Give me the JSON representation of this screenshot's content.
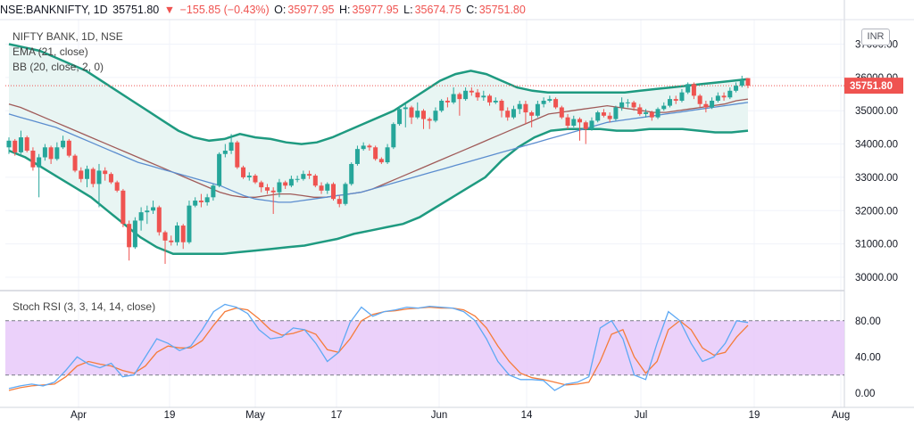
{
  "header": {
    "symbol": "NSE:BANKNIFTY, 1D",
    "last": "35751.80",
    "change": "−155.85 (−0.43%)",
    "o_label": "O:",
    "o_value": "35977.95",
    "h_label": "H:",
    "h_value": "35977.95",
    "l_label": "L:",
    "l_value": "35674.75",
    "c_label": "C:",
    "c_value": "35751.80"
  },
  "legend": {
    "title": "NIFTY BANK, 1D, NSE",
    "ema": "EMA (21, close)",
    "bb": "BB (20, close, 2, 0)",
    "stoch": "Stoch RSI (3, 3, 14, 14, close)"
  },
  "currency_badge": "INR",
  "price_badge": "35751.80",
  "colors": {
    "up": "#26a69a",
    "down": "#ef5350",
    "bb_band": "#1e9a80",
    "bb_fill": "#e8f5f3",
    "ema": "#5b8dcf",
    "bb_basis": "#a05b59",
    "k_line": "#5ea9f4",
    "d_line": "#f57c3a",
    "rsi_band": "#e8c9f9"
  },
  "chart_data": [
    {
      "type": "candlestick",
      "title": "NIFTY BANK, 1D, NSE",
      "y_axis_ticks": [
        "37000.00",
        "36000.00",
        "35000.00",
        "34000.00",
        "33000.00",
        "32000.00",
        "31000.00",
        "30000.00"
      ],
      "x_axis_ticks": [
        "Apr",
        "19",
        "May",
        "17",
        "Jun",
        "14",
        "Jul",
        "19",
        "Aug"
      ],
      "ylim": [
        29800,
        37500
      ],
      "last_price": 35751.8,
      "candles": [
        [
          33900,
          34100,
          33700,
          34200
        ],
        [
          34100,
          33750,
          33650,
          34150
        ],
        [
          33750,
          34200,
          33700,
          34400
        ],
        [
          34200,
          33800,
          33750,
          34250
        ],
        [
          33800,
          33300,
          33200,
          33900
        ],
        [
          33300,
          33600,
          32400,
          33700
        ],
        [
          33600,
          33900,
          33500,
          34000
        ],
        [
          33900,
          33550,
          33400,
          33950
        ],
        [
          33550,
          33900,
          33500,
          34050
        ],
        [
          33900,
          34100,
          33850,
          34250
        ],
        [
          34100,
          33650,
          33600,
          34150
        ],
        [
          33650,
          33200,
          33150,
          33700
        ],
        [
          33200,
          32950,
          32850,
          33300
        ],
        [
          32950,
          33250,
          32700,
          33350
        ],
        [
          33250,
          32800,
          32700,
          33300
        ],
        [
          32800,
          33200,
          32100,
          33400
        ],
        [
          33200,
          33100,
          32900,
          33300
        ],
        [
          33100,
          32850,
          32800,
          33150
        ],
        [
          32850,
          32600,
          32550,
          32900
        ],
        [
          32600,
          31600,
          31500,
          32650
        ],
        [
          31600,
          30900,
          30500,
          31700
        ],
        [
          30900,
          31700,
          30850,
          31800
        ],
        [
          31700,
          31950,
          31400,
          32100
        ],
        [
          31950,
          32000,
          31600,
          32150
        ],
        [
          32000,
          32100,
          31900,
          32300
        ],
        [
          32100,
          31350,
          31250,
          32150
        ],
        [
          31350,
          31100,
          30400,
          31400
        ],
        [
          31100,
          31050,
          30950,
          31250
        ],
        [
          31050,
          31550,
          30950,
          31650
        ],
        [
          31550,
          31050,
          30850,
          31600
        ],
        [
          31050,
          32150,
          31000,
          32300
        ],
        [
          32150,
          32300,
          32100,
          32400
        ],
        [
          32300,
          32250,
          32100,
          32500
        ],
        [
          32250,
          32400,
          32150,
          32500
        ],
        [
          32400,
          32750,
          32300,
          32800
        ],
        [
          32750,
          33700,
          32700,
          33750
        ],
        [
          33700,
          33800,
          33600,
          34000
        ],
        [
          33800,
          34050,
          33700,
          34300
        ],
        [
          34050,
          33300,
          33250,
          34100
        ],
        [
          33300,
          33000,
          32950,
          33350
        ],
        [
          33000,
          33050,
          32900,
          33150
        ],
        [
          33050,
          32850,
          32800,
          33100
        ],
        [
          32850,
          32700,
          32550,
          32900
        ],
        [
          32700,
          32600,
          32500,
          32800
        ],
        [
          32600,
          32550,
          31900,
          32700
        ],
        [
          32550,
          32850,
          32400,
          32950
        ],
        [
          32850,
          32750,
          32650,
          32900
        ],
        [
          32750,
          32950,
          32700,
          33050
        ],
        [
          32950,
          32950,
          32850,
          33050
        ],
        [
          32950,
          33100,
          32900,
          33200
        ],
        [
          33100,
          33050,
          32950,
          33200
        ],
        [
          33050,
          32750,
          32700,
          33100
        ],
        [
          32750,
          32600,
          32500,
          32850
        ],
        [
          32600,
          32800,
          32500,
          32850
        ],
        [
          32800,
          32350,
          32300,
          32850
        ],
        [
          32350,
          32200,
          32100,
          32450
        ],
        [
          32200,
          32800,
          32150,
          32850
        ],
        [
          32800,
          33400,
          32750,
          33450
        ],
        [
          33400,
          33850,
          33350,
          33950
        ],
        [
          33850,
          33950,
          33800,
          34050
        ],
        [
          33950,
          33900,
          33800,
          34000
        ],
        [
          33900,
          33550,
          33500,
          33950
        ],
        [
          33550,
          33450,
          33400,
          33600
        ],
        [
          33450,
          33900,
          33400,
          34000
        ],
        [
          33900,
          34600,
          33850,
          34650
        ],
        [
          34600,
          35050,
          34550,
          35150
        ],
        [
          35050,
          35100,
          34500,
          35200
        ],
        [
          35100,
          34800,
          34600,
          35150
        ],
        [
          34800,
          35000,
          34750,
          35250
        ],
        [
          35000,
          34750,
          34450,
          35050
        ],
        [
          34750,
          34700,
          34450,
          34800
        ],
        [
          34700,
          35000,
          34650,
          35100
        ],
        [
          35000,
          35300,
          34950,
          35350
        ],
        [
          35300,
          35250,
          35100,
          35400
        ],
        [
          35250,
          35500,
          35200,
          35700
        ],
        [
          35500,
          35350,
          34850,
          35550
        ],
        [
          35350,
          35600,
          35300,
          35700
        ],
        [
          35600,
          35550,
          35450,
          35700
        ],
        [
          35550,
          35400,
          35300,
          35650
        ],
        [
          35400,
          35450,
          35300,
          35600
        ],
        [
          35450,
          35250,
          35150,
          35500
        ],
        [
          35250,
          35300,
          35200,
          35400
        ],
        [
          35300,
          35000,
          34800,
          35350
        ],
        [
          35000,
          34800,
          34700,
          35100
        ],
        [
          34800,
          35050,
          34750,
          35150
        ],
        [
          35050,
          35200,
          34900,
          35300
        ],
        [
          35200,
          34950,
          34600,
          35300
        ],
        [
          34950,
          34850,
          34500,
          35000
        ],
        [
          34850,
          35200,
          34800,
          35300
        ],
        [
          35200,
          35300,
          35100,
          35400
        ],
        [
          35300,
          35350,
          35250,
          35450
        ],
        [
          35350,
          35100,
          35050,
          35400
        ],
        [
          35100,
          34800,
          34750,
          35150
        ],
        [
          34800,
          34550,
          34450,
          34900
        ],
        [
          34550,
          34750,
          34500,
          34850
        ],
        [
          34750,
          34650,
          34100,
          34800
        ],
        [
          34650,
          34450,
          34000,
          34700
        ],
        [
          34450,
          34700,
          34400,
          34800
        ],
        [
          34700,
          34950,
          34650,
          35000
        ],
        [
          34950,
          34850,
          34800,
          35050
        ],
        [
          34850,
          34750,
          34650,
          34950
        ],
        [
          34750,
          35100,
          34700,
          35150
        ],
        [
          35100,
          35250,
          35000,
          35400
        ],
        [
          35250,
          35250,
          35100,
          35350
        ],
        [
          35250,
          35100,
          35000,
          35300
        ],
        [
          35100,
          34900,
          34850,
          35200
        ],
        [
          34900,
          34950,
          34800,
          35050
        ],
        [
          34950,
          34800,
          34700,
          35000
        ],
        [
          34800,
          35050,
          34750,
          35100
        ],
        [
          35050,
          35150,
          35000,
          35250
        ],
        [
          35150,
          35350,
          35100,
          35450
        ],
        [
          35350,
          35300,
          35200,
          35450
        ],
        [
          35300,
          35550,
          35250,
          35650
        ],
        [
          35550,
          35800,
          35500,
          35850
        ],
        [
          35800,
          35450,
          35350,
          35850
        ],
        [
          35450,
          35200,
          35100,
          35500
        ],
        [
          35200,
          35100,
          34950,
          35300
        ],
        [
          35100,
          35300,
          35050,
          35400
        ],
        [
          35300,
          35450,
          35250,
          35550
        ],
        [
          35450,
          35400,
          35300,
          35550
        ],
        [
          35400,
          35600,
          35350,
          35700
        ],
        [
          35600,
          35750,
          35550,
          35850
        ],
        [
          35750,
          35900,
          35700,
          36050
        ],
        [
          35977.95,
          35751.8,
          35674.75,
          35977.95
        ]
      ],
      "ema21": [
        34900,
        34800,
        34700,
        34600,
        34500,
        34350,
        34200,
        34050,
        33900,
        33750,
        33600,
        33450,
        33350,
        33250,
        33150,
        33050,
        32950,
        32850,
        32750,
        32600,
        32450,
        32350,
        32300,
        32250,
        32250,
        32300,
        32350,
        32400,
        32450,
        32500,
        32550,
        32650,
        32750,
        32850,
        32950,
        33050,
        33150,
        33250,
        33350,
        33450,
        33550,
        33650,
        33750,
        33850,
        33950,
        34050,
        34150,
        34250,
        34350,
        34450,
        34550,
        34650,
        34700,
        34750,
        34800,
        34850,
        34900,
        34950,
        35000,
        35050,
        35100,
        35150,
        35200,
        35250
      ],
      "bb_basis": [
        35200,
        35100,
        34950,
        34800,
        34650,
        34500,
        34350,
        34200,
        34050,
        33900,
        33750,
        33600,
        33450,
        33300,
        33150,
        33000,
        32850,
        32700,
        32550,
        32450,
        32400,
        32400,
        32450,
        32500,
        32500,
        32450,
        32400,
        32400,
        32450,
        32500,
        32550,
        32650,
        32800,
        32950,
        33100,
        33250,
        33400,
        33550,
        33700,
        33850,
        34000,
        34150,
        34300,
        34450,
        34600,
        34750,
        34900,
        34950,
        35000,
        35050,
        35100,
        35150,
        35100,
        35050,
        35000,
        34950,
        34950,
        35000,
        35050,
        35100,
        35150,
        35200,
        35300,
        35350
      ],
      "bb_upper": [
        37000,
        36900,
        36800,
        36600,
        36400,
        36200,
        35900,
        35600,
        35300,
        35000,
        34700,
        34400,
        34200,
        34100,
        34150,
        34300,
        34200,
        34150,
        34050,
        34000,
        34050,
        34200,
        34400,
        34600,
        34800,
        35000,
        35300,
        35600,
        35900,
        36100,
        36200,
        36100,
        35900,
        35700,
        35600,
        35550,
        35550,
        35550,
        35550,
        35550,
        35550,
        35600,
        35650,
        35700,
        35750,
        35800,
        35850,
        35900,
        35950
      ],
      "bb_lower": [
        33800,
        33600,
        33300,
        33000,
        32700,
        32400,
        32000,
        31600,
        31200,
        30900,
        30700,
        30700,
        30700,
        30700,
        30750,
        30800,
        30850,
        30900,
        30950,
        31050,
        31150,
        31300,
        31400,
        31500,
        31600,
        31800,
        32100,
        32400,
        32700,
        33000,
        33500,
        33900,
        34200,
        34400,
        34450,
        34450,
        34450,
        34400,
        34400,
        34450,
        34450,
        34450,
        34400,
        34350,
        34350,
        34400
      ]
    },
    {
      "type": "line",
      "title": "Stoch RSI (3, 3, 14, 14, close)",
      "y_axis_ticks": [
        "80.00",
        "40.00",
        "0.00"
      ],
      "ylim": [
        -10,
        100
      ],
      "band": [
        20,
        80
      ],
      "series": [
        {
          "name": "",
          "values": [
            5,
            8,
            10,
            8,
            12,
            25,
            40,
            32,
            28,
            33,
            18,
            20,
            40,
            60,
            55,
            47,
            52,
            70,
            90,
            98,
            95,
            88,
            70,
            60,
            62,
            72,
            70,
            55,
            35,
            45,
            78,
            95,
            85,
            90,
            92,
            95,
            94,
            96,
            95,
            94,
            90,
            80,
            60,
            35,
            20,
            15,
            15,
            14,
            3,
            10,
            12,
            18,
            72,
            80,
            60,
            20,
            15,
            55,
            90,
            80,
            55,
            35,
            40,
            55,
            80,
            78
          ]
        },
        {
          "name": "",
          "values": [
            3,
            6,
            8,
            9,
            10,
            18,
            30,
            35,
            32,
            30,
            25,
            22,
            30,
            45,
            52,
            50,
            50,
            58,
            75,
            90,
            94,
            92,
            82,
            70,
            64,
            66,
            70,
            65,
            48,
            45,
            60,
            80,
            87,
            90,
            91,
            93,
            94,
            95,
            94,
            94,
            92,
            85,
            72,
            52,
            35,
            22,
            17,
            15,
            12,
            9,
            10,
            12,
            35,
            65,
            70,
            40,
            22,
            35,
            70,
            80,
            70,
            50,
            42,
            45,
            62,
            75
          ]
        }
      ]
    }
  ]
}
